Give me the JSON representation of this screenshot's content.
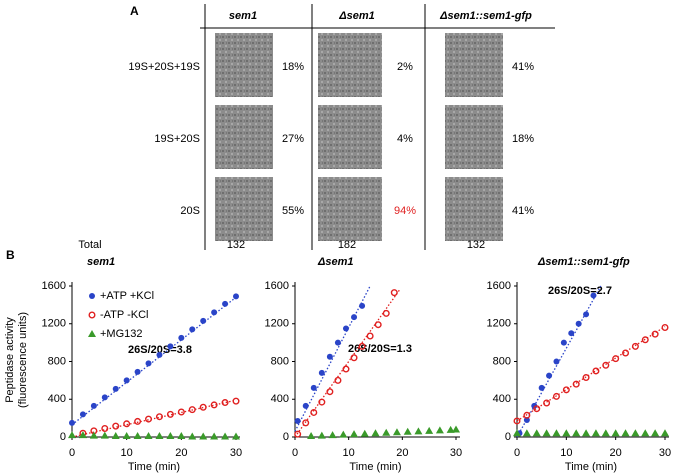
{
  "panel_a_label": "A",
  "panel_b_label": "B",
  "table": {
    "columns": [
      "sem1",
      "Δsem1",
      "Δsem1::sem1-gfp"
    ],
    "rows": [
      {
        "label": "19S+20S+19S",
        "cells": [
          "18%",
          "2%",
          "41%"
        ]
      },
      {
        "label": "19S+20S",
        "cells": [
          "27%",
          "4%",
          "18%"
        ]
      },
      {
        "label": "20S",
        "cells": [
          "55%",
          "94%",
          "41%"
        ]
      }
    ],
    "total": {
      "label": "Total",
      "cells": [
        "132",
        "182",
        "132"
      ]
    }
  },
  "chart_data": [
    {
      "type": "scatter",
      "title": "sem1",
      "xlabel": "Time (min)",
      "ylabel": [
        "Peptidase  activity",
        "(fluorescence units)"
      ],
      "xlim": [
        0,
        30
      ],
      "xticks": [
        0,
        10,
        20,
        30
      ],
      "ylim": [
        0,
        1600
      ],
      "yticks": [
        0,
        400,
        800,
        1200,
        1600
      ],
      "legend": "upper left",
      "annotation": "26S/20S=3.8",
      "series": [
        {
          "name": "+ATP +KCl",
          "color": "#2a44c8",
          "marker": "circle",
          "x": [
            0,
            2,
            4,
            6,
            8,
            10,
            12,
            14,
            16,
            18,
            20,
            22,
            24,
            26,
            28,
            30
          ],
          "values": [
            150,
            240,
            330,
            420,
            510,
            600,
            690,
            780,
            870,
            960,
            1050,
            1140,
            1230,
            1320,
            1410,
            1490
          ],
          "fit_x": [
            0,
            30
          ],
          "fit": [
            130,
            1480
          ]
        },
        {
          "name": "-ATP  -KCl",
          "color": "#e02020",
          "marker": "open-circle",
          "x": [
            2,
            4,
            6,
            8,
            10,
            12,
            14,
            16,
            18,
            20,
            22,
            24,
            26,
            28,
            30
          ],
          "values": [
            40,
            65,
            90,
            115,
            140,
            165,
            190,
            215,
            240,
            265,
            290,
            315,
            340,
            365,
            380
          ],
          "fit_x": [
            0,
            30
          ],
          "fit": [
            0,
            390
          ]
        },
        {
          "name": "+MG132",
          "color": "#3a9a2a",
          "marker": "triangle",
          "x": [
            0,
            2,
            4,
            6,
            8,
            10,
            12,
            14,
            16,
            18,
            20,
            22,
            24,
            26,
            28,
            30
          ],
          "values": [
            20,
            20,
            15,
            15,
            10,
            10,
            10,
            10,
            10,
            10,
            10,
            5,
            5,
            5,
            5,
            5
          ]
        }
      ]
    },
    {
      "type": "scatter",
      "title": "Δsem1",
      "xlabel": "Time (min)",
      "xlim": [
        0,
        30
      ],
      "xticks": [
        0,
        10,
        20,
        30
      ],
      "ylim": [
        0,
        1600
      ],
      "yticks": [
        0,
        400,
        800,
        1200,
        1600
      ],
      "annotation": "26S/20S=1.3",
      "series": [
        {
          "color": "#2a44c8",
          "marker": "circle",
          "x": [
            0.5,
            2,
            3.5,
            5,
            6.5,
            8,
            9.5,
            11,
            12.5
          ],
          "values": [
            170,
            330,
            520,
            680,
            850,
            1000,
            1150,
            1270,
            1390
          ],
          "fit_x": [
            0,
            14
          ],
          "fit": [
            60,
            1600
          ]
        },
        {
          "color": "#e02020",
          "marker": "open-circle",
          "x": [
            0.5,
            2,
            3.5,
            5,
            6.5,
            8,
            9.5,
            11,
            12.5,
            14,
            15.5,
            17,
            18.5
          ],
          "values": [
            30,
            150,
            260,
            370,
            480,
            600,
            720,
            840,
            960,
            1070,
            1190,
            1310,
            1530
          ],
          "fit_x": [
            0,
            19.5
          ],
          "fit": [
            0,
            1560
          ]
        },
        {
          "color": "#3a9a2a",
          "marker": "triangle",
          "x": [
            3,
            5,
            7,
            9,
            11,
            13,
            15,
            17,
            19,
            21,
            23,
            25,
            27,
            29,
            30
          ],
          "values": [
            10,
            15,
            20,
            25,
            30,
            35,
            40,
            45,
            50,
            55,
            60,
            65,
            70,
            75,
            80
          ]
        }
      ]
    },
    {
      "type": "scatter",
      "title": "Δsem1::sem1-gfp",
      "xlabel": "Time (min)",
      "xlim": [
        0,
        30
      ],
      "xticks": [
        0,
        10,
        20,
        30
      ],
      "ylim": [
        0,
        1600
      ],
      "yticks": [
        0,
        400,
        800,
        1200,
        1600
      ],
      "annotation": "26S/20S=2.7",
      "series": [
        {
          "color": "#2a44c8",
          "marker": "circle",
          "x": [
            0.5,
            2,
            3.5,
            5,
            6.5,
            8,
            9.5,
            11,
            12.5,
            14,
            15.5
          ],
          "values": [
            40,
            180,
            330,
            520,
            650,
            800,
            1000,
            1100,
            1200,
            1300,
            1500
          ],
          "fit_x": [
            0,
            17
          ],
          "fit": [
            0,
            1600
          ]
        },
        {
          "color": "#e02020",
          "marker": "open-circle",
          "x": [
            0,
            2,
            4,
            6,
            8,
            10,
            12,
            14,
            16,
            18,
            20,
            22,
            24,
            26,
            28,
            30
          ],
          "values": [
            170,
            230,
            300,
            360,
            430,
            500,
            560,
            630,
            700,
            760,
            830,
            890,
            960,
            1030,
            1090,
            1160
          ],
          "fit_x": [
            0,
            30
          ],
          "fit": [
            170,
            1170
          ]
        },
        {
          "color": "#3a9a2a",
          "marker": "triangle",
          "x": [
            0,
            2,
            4,
            6,
            8,
            10,
            12,
            14,
            16,
            18,
            20,
            22,
            24,
            26,
            28,
            30
          ],
          "values": [
            40,
            40,
            40,
            40,
            40,
            40,
            40,
            40,
            40,
            40,
            40,
            40,
            40,
            40,
            40,
            40
          ]
        }
      ]
    }
  ]
}
